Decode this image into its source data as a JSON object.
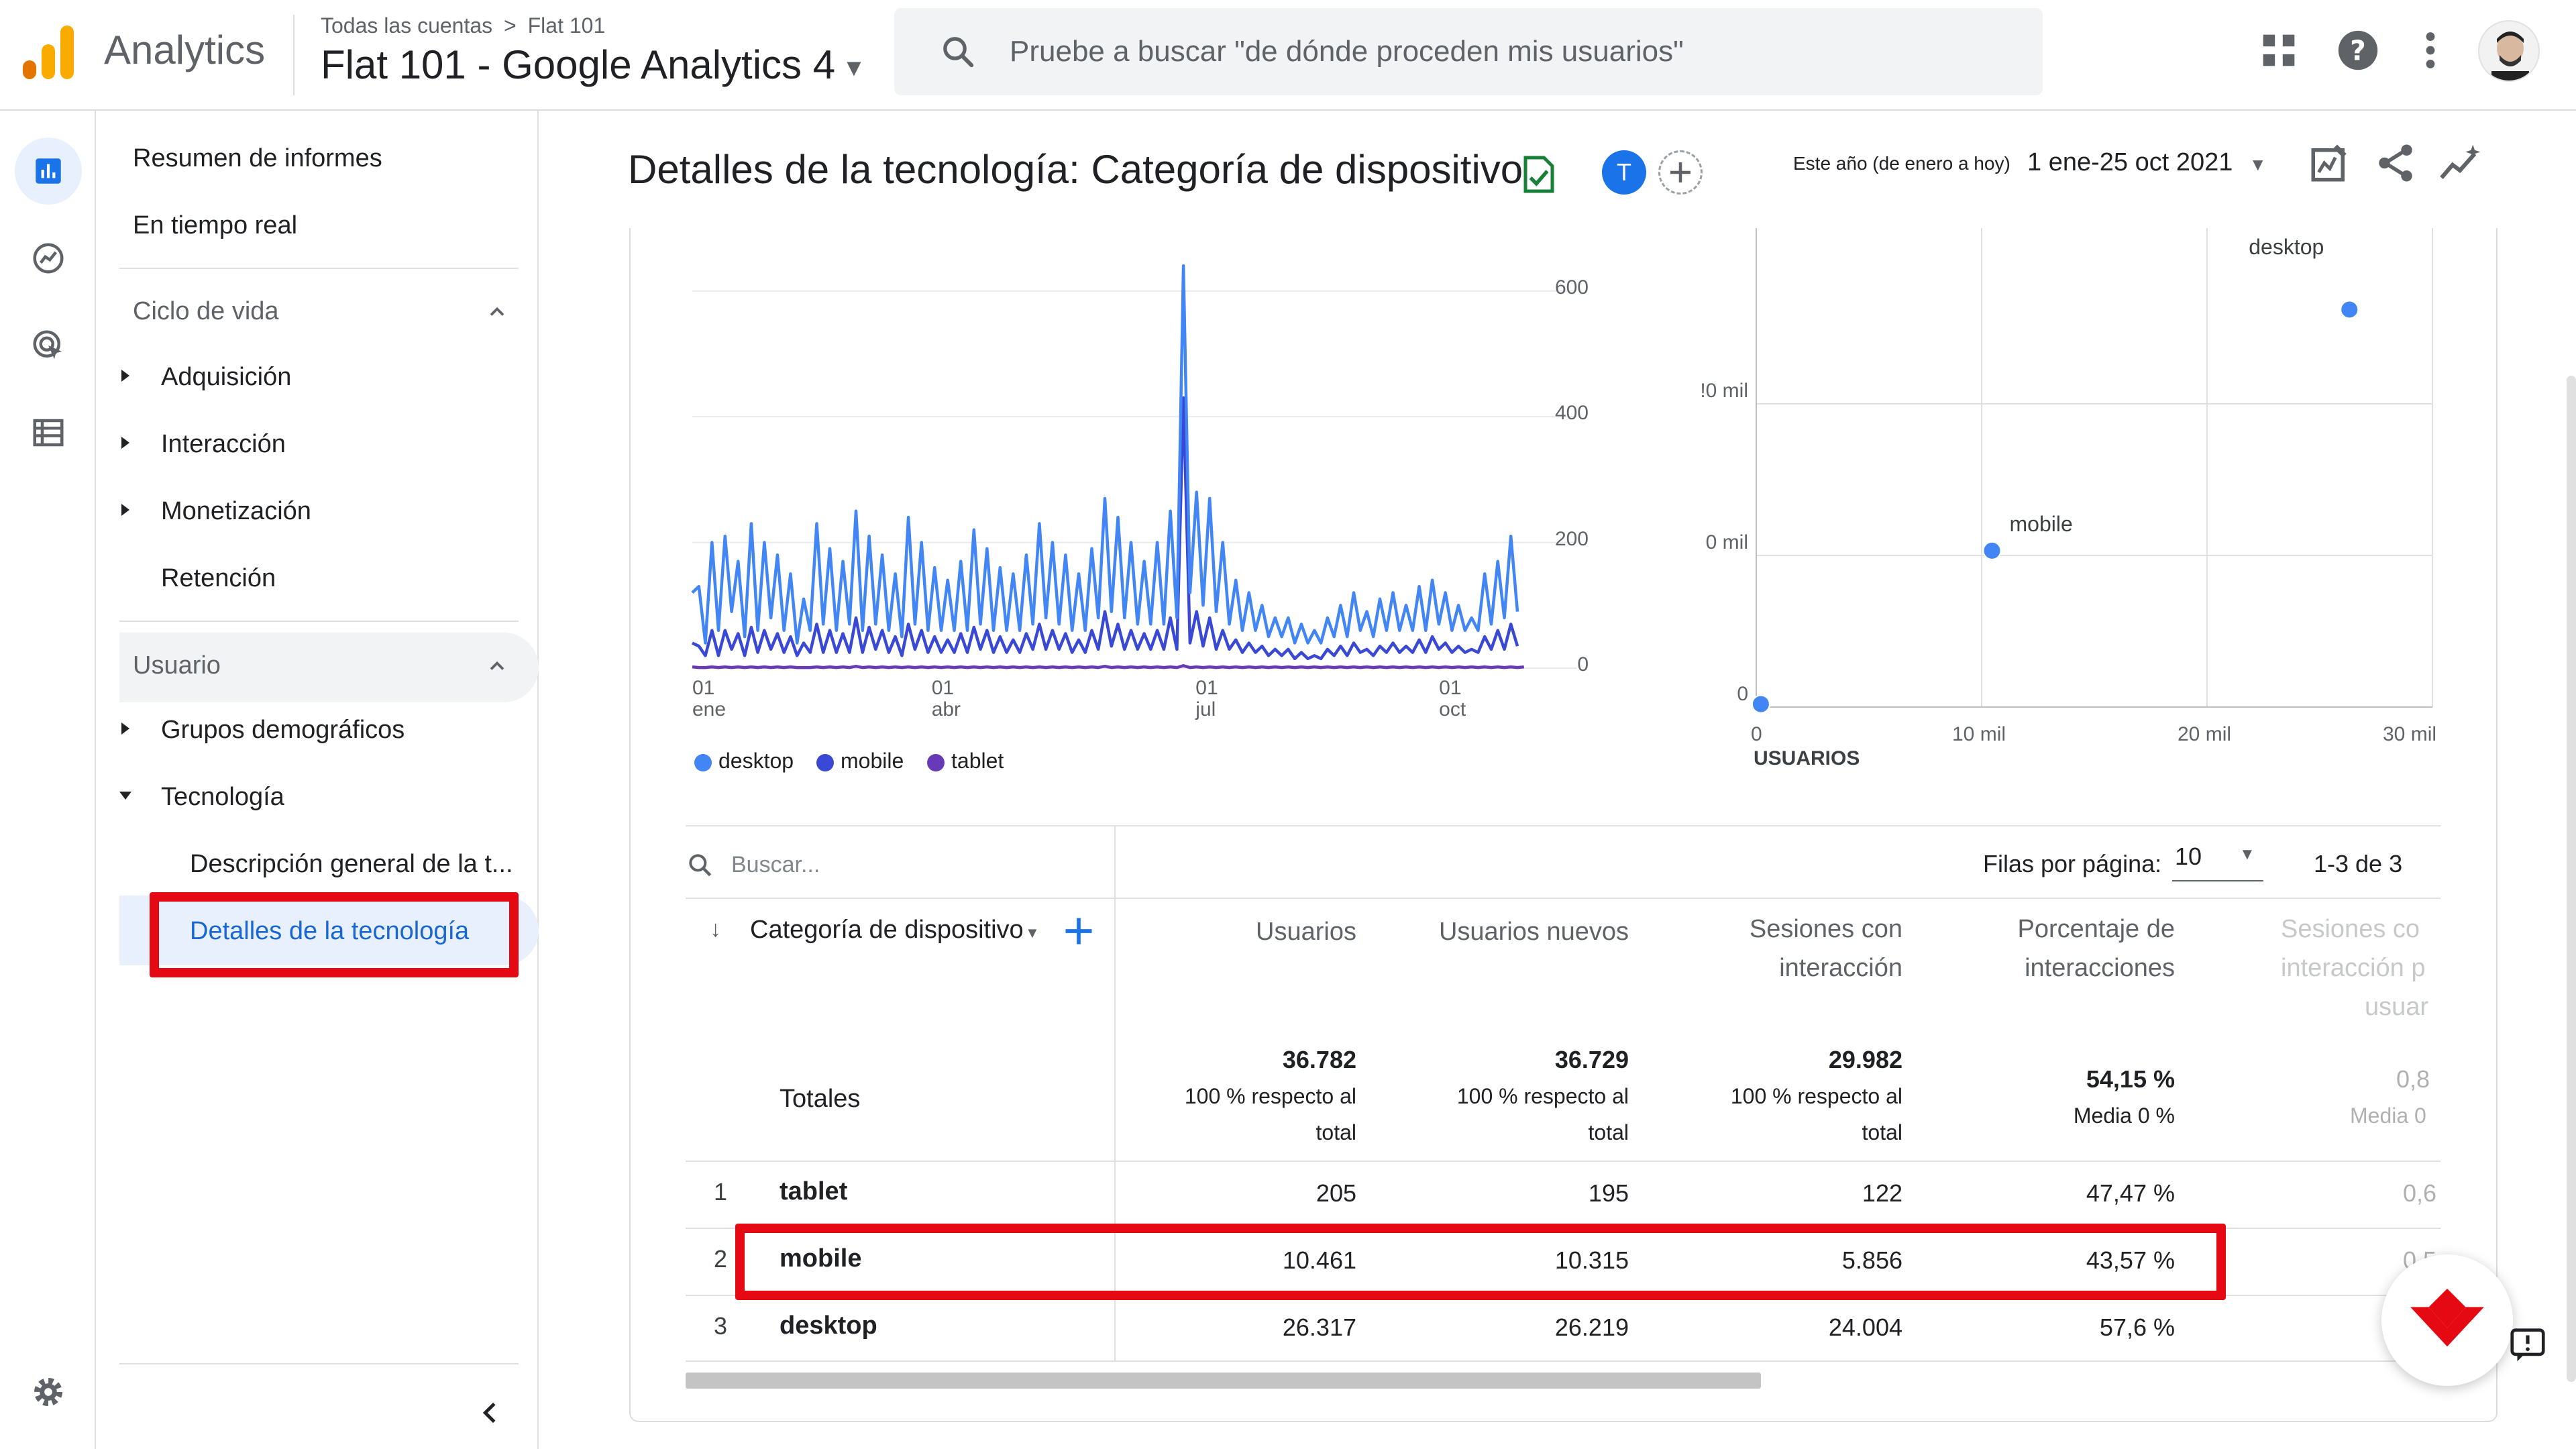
{
  "app": {
    "name": "Analytics",
    "breadcrumb_root": "Todas las cuentas",
    "breadcrumb_sep": ">",
    "breadcrumb_account": "Flat 101",
    "property": "Flat 101 - Google Analytics 4",
    "search_placeholder": "Pruebe a buscar \"de dónde proceden mis usuarios\"",
    "avatar_initial": ""
  },
  "nav": {
    "items": {
      "summary": "Resumen de informes",
      "realtime": "En tiempo real",
      "lifecycle": "Ciclo de vida",
      "acquisition": "Adquisición",
      "engagement": "Interacción",
      "monetization": "Monetización",
      "retention": "Retención",
      "user": "Usuario",
      "demographics": "Grupos demográficos",
      "tech": "Tecnología",
      "tech_overview": "Descripción general de la t...",
      "tech_details": "Detalles de la tecnología"
    }
  },
  "header": {
    "title": "Detalles de la tecnología: Categoría de dispositivo",
    "comparison_badge": "T",
    "date_preset": "Este año (de enero a hoy)",
    "date_range": "1 ene-25 oct 2021"
  },
  "colors": {
    "desktop": "#4285f4",
    "mobile": "#3949d6",
    "tablet": "#673ab7",
    "accent": "#1a73e8",
    "highlight": "#e50914"
  },
  "chart_data": [
    {
      "type": "line",
      "x_ticks": [
        {
          "day": "01",
          "month": "ene"
        },
        {
          "day": "01",
          "month": "abr"
        },
        {
          "day": "01",
          "month": "jul"
        },
        {
          "day": "01",
          "month": "oct"
        }
      ],
      "y_ticks": [
        "600",
        "400",
        "200",
        "0"
      ],
      "ylim": [
        0,
        700
      ],
      "legend": [
        "desktop",
        "mobile",
        "tablet"
      ],
      "series": [
        {
          "name": "desktop",
          "values": [
            120,
            130,
            40,
            200,
            60,
            210,
            90,
            170,
            50,
            230,
            60,
            200,
            80,
            180,
            60,
            150,
            40,
            110,
            60,
            230,
            70,
            190,
            60,
            170,
            70,
            250,
            60,
            210,
            70,
            180,
            60,
            150,
            50,
            240,
            70,
            200,
            60,
            160,
            60,
            140,
            60,
            170,
            60,
            220,
            70,
            190,
            60,
            160,
            60,
            150,
            60,
            180,
            70,
            230,
            80,
            200,
            70,
            180,
            60,
            150,
            60,
            190,
            80,
            270,
            90,
            240,
            80,
            200,
            70,
            170,
            70,
            200,
            70,
            250,
            80,
            640,
            120,
            280,
            100,
            270,
            90,
            200,
            70,
            140,
            60,
            120,
            60,
            100,
            50,
            80,
            50,
            80,
            40,
            70,
            40,
            60,
            40,
            80,
            50,
            100,
            50,
            120,
            60,
            90,
            50,
            110,
            60,
            120,
            60,
            100,
            60,
            130,
            60,
            140,
            70,
            120,
            60,
            100,
            60,
            80,
            60,
            150,
            70,
            170,
            80,
            210,
            90
          ]
        },
        {
          "name": "mobile",
          "values": [
            40,
            35,
            20,
            60,
            20,
            60,
            30,
            55,
            20,
            65,
            25,
            60,
            30,
            55,
            25,
            50,
            20,
            40,
            25,
            70,
            25,
            60,
            25,
            55,
            25,
            80,
            25,
            65,
            30,
            60,
            25,
            50,
            20,
            70,
            30,
            60,
            25,
            50,
            25,
            45,
            25,
            55,
            25,
            65,
            30,
            60,
            25,
            50,
            25,
            45,
            25,
            55,
            30,
            70,
            30,
            60,
            30,
            55,
            25,
            45,
            25,
            60,
            30,
            90,
            35,
            70,
            30,
            60,
            30,
            55,
            30,
            60,
            30,
            80,
            30,
            430,
            40,
            90,
            35,
            80,
            30,
            60,
            30,
            45,
            25,
            40,
            25,
            35,
            20,
            30,
            20,
            30,
            15,
            25,
            15,
            20,
            15,
            30,
            20,
            35,
            20,
            40,
            25,
            30,
            20,
            35,
            25,
            40,
            25,
            35,
            25,
            45,
            25,
            50,
            30,
            40,
            25,
            35,
            25,
            30,
            25,
            50,
            30,
            60,
            30,
            70,
            35
          ]
        },
        {
          "name": "tablet",
          "values": [
            2,
            1,
            1,
            2,
            1,
            2,
            1,
            2,
            1,
            2,
            1,
            2,
            1,
            2,
            1,
            2,
            1,
            1,
            1,
            2,
            1,
            2,
            1,
            2,
            1,
            3,
            1,
            2,
            1,
            2,
            1,
            2,
            1,
            2,
            1,
            2,
            1,
            2,
            1,
            2,
            1,
            2,
            1,
            2,
            1,
            2,
            1,
            2,
            1,
            2,
            1,
            2,
            1,
            2,
            1,
            2,
            1,
            2,
            1,
            2,
            1,
            2,
            1,
            3,
            1,
            2,
            1,
            2,
            1,
            2,
            1,
            2,
            1,
            2,
            1,
            4,
            1,
            2,
            1,
            2,
            1,
            2,
            1,
            2,
            1,
            2,
            1,
            2,
            1,
            2,
            1,
            2,
            1,
            2,
            1,
            2,
            1,
            2,
            1,
            2,
            1,
            2,
            1,
            2,
            1,
            2,
            1,
            2,
            1,
            2,
            1,
            2,
            1,
            2,
            1,
            2,
            1,
            2,
            1,
            2,
            1,
            2,
            1,
            2,
            1,
            2,
            1,
            2
          ]
        }
      ]
    },
    {
      "type": "scatter",
      "xlabel": "USUARIOS",
      "x_ticks": [
        "0",
        "10 mil",
        "20 mil",
        "30 mil"
      ],
      "y_ticks": [
        "0",
        "0 mil",
        "!0 mil"
      ],
      "xlim": [
        0,
        30000
      ],
      "ylim": [
        0,
        30000
      ],
      "points": [
        {
          "label": "tablet",
          "x": 205,
          "y": 195
        },
        {
          "label": "mobile",
          "x": 10461,
          "y": 10315
        },
        {
          "label": "desktop",
          "x": 26317,
          "y": 26219
        }
      ],
      "point_labels": {
        "mobile": "mobile",
        "desktop": "desktop"
      }
    }
  ],
  "table": {
    "search_placeholder": "Buscar...",
    "rows_per_page_label": "Filas por página:",
    "rows_per_page": "10",
    "pagination": "1-3 de 3",
    "dimension_header": "Categoría de dispositivo",
    "columns": {
      "users": "Usuarios",
      "new_users": "Usuarios nuevos",
      "engaged_1": "Sesiones con",
      "engaged_2": "interacción",
      "engagement_rate_1": "Porcentaje de",
      "engagement_rate_2": "interacciones",
      "engaged_per_user_1": "Sesiones co",
      "engaged_per_user_2": "interacción p",
      "engaged_per_user_3": "usuar"
    },
    "totals": {
      "label": "Totales",
      "users": "36.782",
      "new_users": "36.729",
      "engaged": "29.982",
      "pct_line1": "100 % respecto al",
      "pct_line2": "total",
      "rate": "54,15 %",
      "rate_sub": "Media 0 %",
      "per_user": "0,8",
      "per_user_sub": "Media 0"
    },
    "rows": [
      {
        "idx": "1",
        "name": "tablet",
        "users": "205",
        "new_users": "195",
        "engaged": "122",
        "rate": "47,47 %",
        "per_user": "0,6"
      },
      {
        "idx": "2",
        "name": "mobile",
        "users": "10.461",
        "new_users": "10.315",
        "engaged": "5.856",
        "rate": "43,57 %",
        "per_user": "0,5"
      },
      {
        "idx": "3",
        "name": "desktop",
        "users": "26.317",
        "new_users": "26.219",
        "engaged": "24.004",
        "rate": "57,6 %",
        "per_user": ""
      }
    ]
  }
}
